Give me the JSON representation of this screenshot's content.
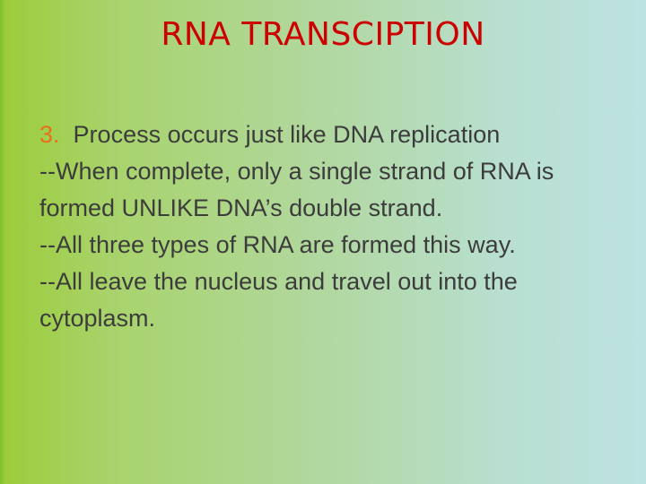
{
  "title": "RNA TRANSCIPTION",
  "point": {
    "number": "3.",
    "text": "Process occurs just like DNA replication"
  },
  "notes": [
    "--When complete, only a single strand of RNA is formed UNLIKE DNA’s double strand.",
    "--All three types of RNA are formed this way.",
    "--All leave the nucleus and travel out into the cytoplasm."
  ]
}
